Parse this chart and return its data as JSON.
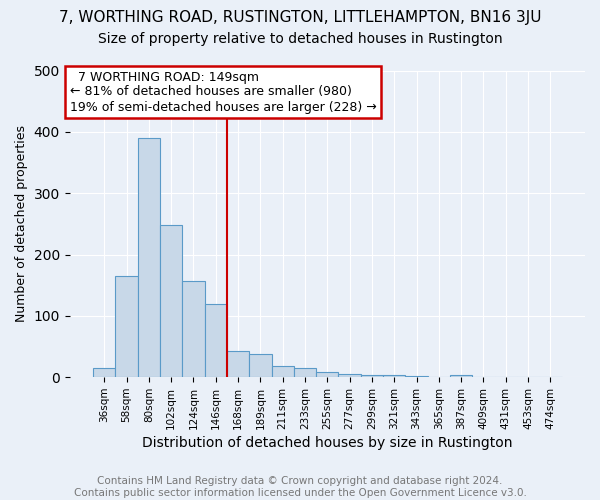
{
  "title": "7, WORTHING ROAD, RUSTINGTON, LITTLEHAMPTON, BN16 3JU",
  "subtitle": "Size of property relative to detached houses in Rustington",
  "xlabel": "Distribution of detached houses by size in Rustington",
  "ylabel": "Number of detached properties",
  "footer": "Contains HM Land Registry data © Crown copyright and database right 2024.\nContains public sector information licensed under the Open Government Licence v3.0.",
  "categories": [
    "36sqm",
    "58sqm",
    "80sqm",
    "102sqm",
    "124sqm",
    "146sqm",
    "168sqm",
    "189sqm",
    "211sqm",
    "233sqm",
    "255sqm",
    "277sqm",
    "299sqm",
    "321sqm",
    "343sqm",
    "365sqm",
    "387sqm",
    "409sqm",
    "431sqm",
    "453sqm",
    "474sqm"
  ],
  "values": [
    15,
    165,
    390,
    248,
    157,
    120,
    43,
    38,
    18,
    15,
    8,
    5,
    3,
    3,
    2,
    1,
    4,
    1,
    1,
    1,
    0
  ],
  "bar_color": "#c8d8e8",
  "bar_edge_color": "#5a9ac8",
  "vline_x": 5.5,
  "vline_color": "#cc0000",
  "annotation_text": "  7 WORTHING ROAD: 149sqm\n← 81% of detached houses are smaller (980)\n19% of semi-detached houses are larger (228) →",
  "annotation_box_color": "white",
  "annotation_box_edge_color": "#cc0000",
  "ylim": [
    0,
    500
  ],
  "background_color": "#eaf0f8",
  "plot_bg_color": "#eaf0f8",
  "title_fontsize": 11,
  "subtitle_fontsize": 10,
  "xlabel_fontsize": 10,
  "ylabel_fontsize": 9,
  "tick_fontsize": 7.5,
  "footer_fontsize": 7.5,
  "annotation_fontsize": 9
}
